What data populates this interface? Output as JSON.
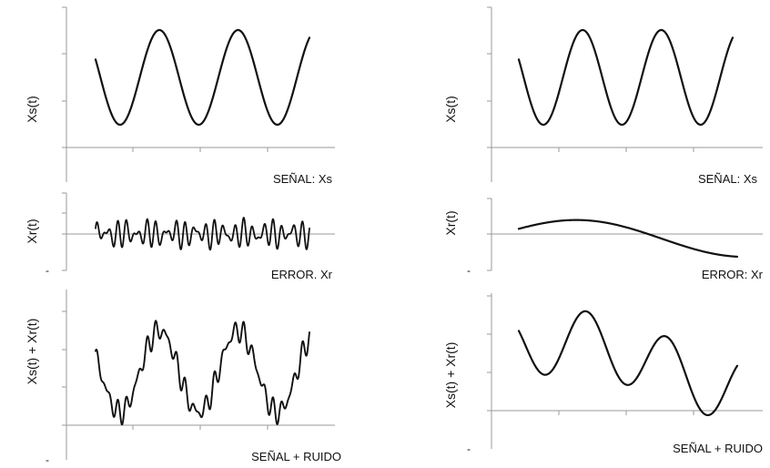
{
  "chart_data": [
    {
      "type": "line",
      "panel": "left-top",
      "ylabel": "Xs(t)",
      "caption": "SEÑAL: Xs",
      "description_of_series": "pure sinusoid, about 2.8 cycles"
    },
    {
      "type": "line",
      "panel": "left-middle",
      "ylabel": "Xr(t)",
      "caption": "ERROR. Xr",
      "tick_text": "-",
      "description_of_series": "high-frequency noise around zero"
    },
    {
      "type": "line",
      "panel": "left-bottom",
      "ylabel": "Xs(t) + Xr(t)",
      "caption": "SEÑAL + RUIDO",
      "tick_text": "-",
      "description_of_series": "sinusoid plus high-frequency noise"
    },
    {
      "type": "line",
      "panel": "right-top",
      "ylabel": "Xs(t)",
      "caption": "SEÑAL: Xs",
      "description_of_series": "pure sinusoid, about 2.8 cycles"
    },
    {
      "type": "line",
      "panel": "right-middle",
      "ylabel": "Xr(t)",
      "caption": "ERROR: Xr",
      "tick_text": "-",
      "description_of_series": "slow low-frequency drift"
    },
    {
      "type": "line",
      "panel": "right-bottom",
      "ylabel": "Xs(t) + Xr(t)",
      "caption": "SEÑAL + RUIDO",
      "tick_text": "-",
      "description_of_series": "sinusoid plus low-frequency drift"
    }
  ]
}
